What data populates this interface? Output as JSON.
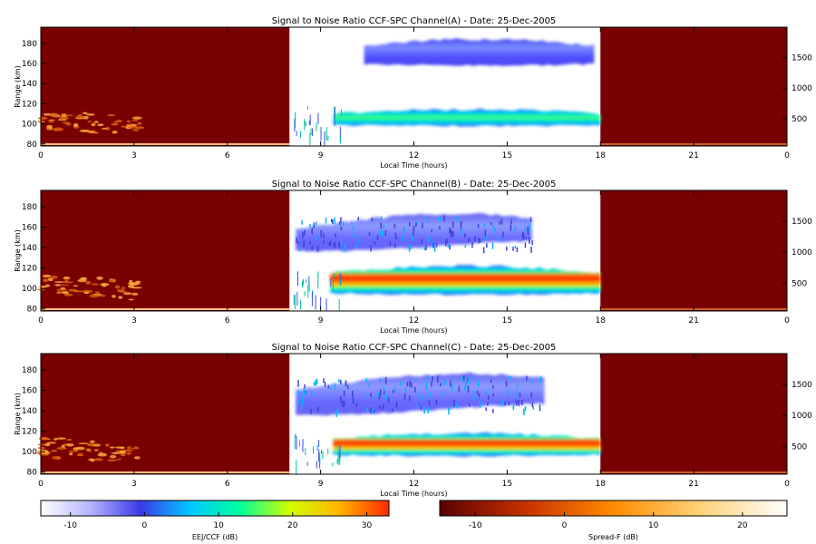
{
  "chart_data": [
    {
      "type": "heatmap",
      "title": "Signal to Noise Ratio CCF-SPC Channel(A) - Date: 25-Dec-2005",
      "xlabel": "Local Time (hours)",
      "ylabel": "Range (km)",
      "x_ticks": [
        "0",
        "3",
        "6",
        "9",
        "12",
        "15",
        "18",
        "21",
        "0"
      ],
      "y_ticks": [
        80,
        100,
        120,
        140,
        160,
        180
      ],
      "y2_ticks": [
        500,
        1000,
        1500
      ],
      "xlim": [
        0,
        24
      ],
      "ylim": [
        78,
        196
      ],
      "y2lim": [
        50,
        2000
      ],
      "layers": {
        "spreadF_night": [
          [
            0,
            8
          ],
          [
            18,
            24
          ]
        ],
        "eej_day": [
          8,
          18
        ]
      },
      "echo_regions": [
        {
          "name": "lower",
          "t": [
            9.4,
            18.0
          ],
          "range": [
            98,
            114
          ],
          "peak_snr_db": 18
        },
        {
          "name": "upper",
          "t": [
            10.4,
            17.8
          ],
          "range": [
            158,
            184
          ],
          "peak_snr_db": 0
        }
      ]
    },
    {
      "type": "heatmap",
      "title": "Signal to Noise Ratio CCF-SPC Channel(B) - Date: 25-Dec-2005",
      "xlabel": "Local Time (hours)",
      "ylabel": "Range (km)",
      "x_ticks": [
        "0",
        "3",
        "6",
        "9",
        "12",
        "15",
        "18",
        "21",
        "0"
      ],
      "y_ticks": [
        80,
        100,
        120,
        140,
        160,
        180
      ],
      "y2_ticks": [
        500,
        1000,
        1500
      ],
      "xlim": [
        0,
        24
      ],
      "ylim": [
        78,
        196
      ],
      "y2lim": [
        50,
        2000
      ],
      "echo_regions": [
        {
          "name": "lower",
          "t": [
            9.3,
            18.0
          ],
          "range": [
            94,
            122
          ],
          "peak_snr_db": 30
        },
        {
          "name": "upper",
          "t": [
            8.2,
            15.8
          ],
          "range": [
            140,
            172
          ],
          "peak_snr_db": -5
        }
      ]
    },
    {
      "type": "heatmap",
      "title": "Signal to Noise Ratio CCF-SPC Channel(C) - Date: 25-Dec-2005",
      "xlabel": "Local Time (hours)",
      "ylabel": "Range (km)",
      "x_ticks": [
        "0",
        "3",
        "6",
        "9",
        "12",
        "15",
        "18",
        "21",
        "0"
      ],
      "y_ticks": [
        80,
        100,
        120,
        140,
        160,
        180
      ],
      "y2_ticks": [
        500,
        1000,
        1500
      ],
      "xlim": [
        0,
        24
      ],
      "ylim": [
        78,
        196
      ],
      "y2lim": [
        50,
        2000
      ],
      "echo_regions": [
        {
          "name": "lower",
          "t": [
            9.4,
            18.0
          ],
          "range": [
            96,
            118
          ],
          "peak_snr_db": 28
        },
        {
          "name": "upper",
          "t": [
            8.2,
            16.2
          ],
          "range": [
            140,
            175
          ],
          "peak_snr_db": -4
        }
      ]
    }
  ],
  "colorbars": [
    {
      "label": "EEJ/CCF (dB)",
      "range": [
        -14,
        33
      ],
      "ticks": [
        "-10",
        "0",
        "10",
        "20",
        "30"
      ],
      "colors": [
        "#ffffff",
        "#b4b4ff",
        "#3a3ae6",
        "#00c8ff",
        "#00ffa0",
        "#d0ff00",
        "#ffb400",
        "#ff2a00"
      ]
    },
    {
      "label": "Spread-F (dB)",
      "range": [
        -14,
        25
      ],
      "ticks": [
        "-10",
        "0",
        "10",
        "20"
      ],
      "colors": [
        "#5a0000",
        "#c83200",
        "#ff8c00",
        "#ffd278",
        "#ffffff"
      ]
    }
  ]
}
